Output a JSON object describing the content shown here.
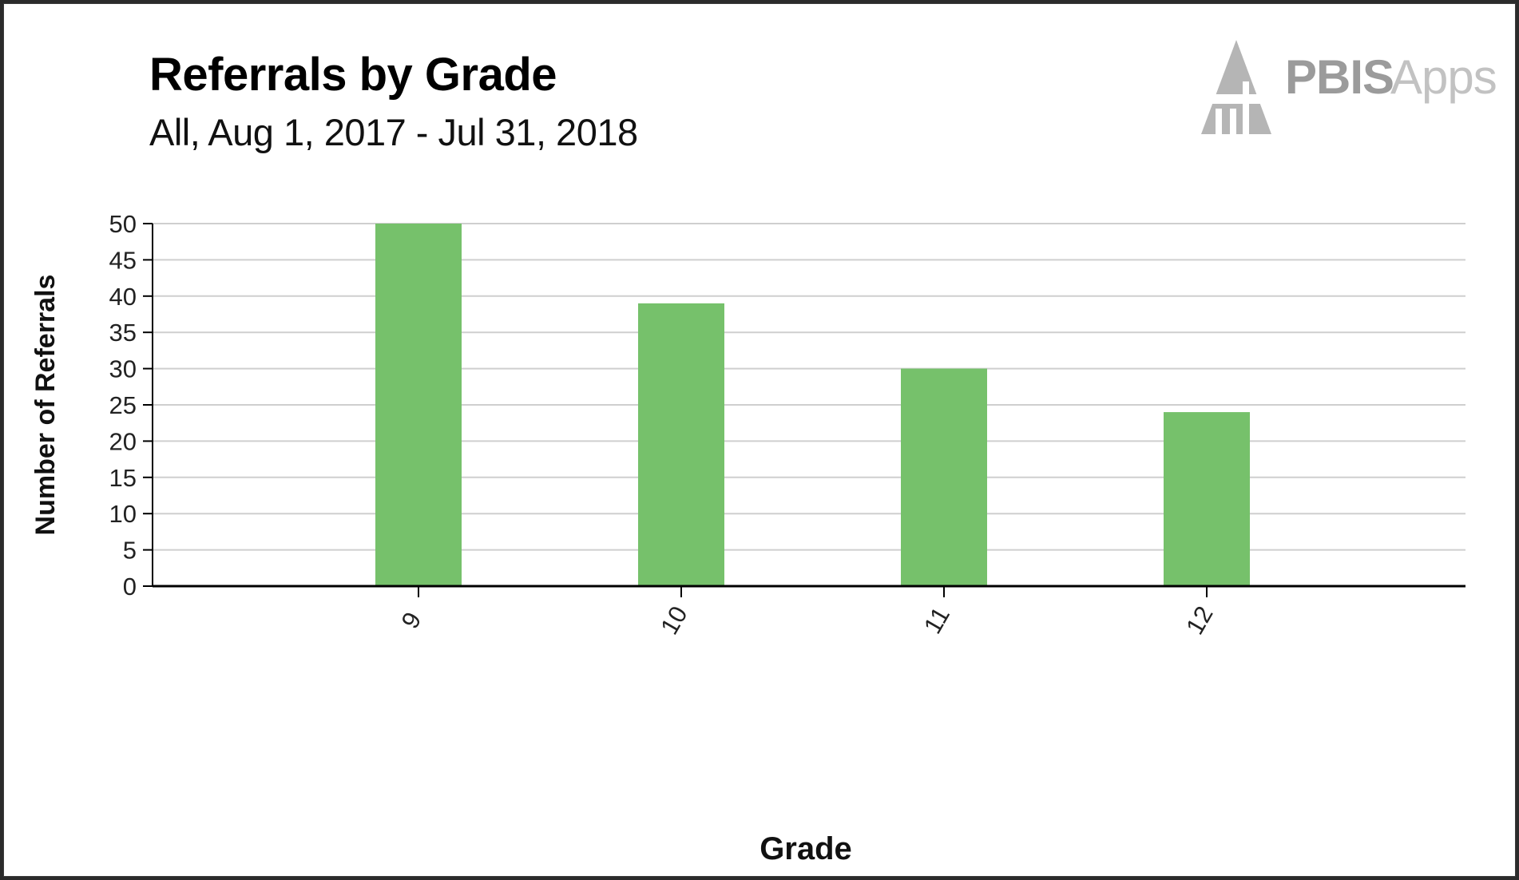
{
  "colors": {
    "bar": "#76c16b",
    "grid": "#cfcfcf",
    "axis": "#000000",
    "logo": "#9b9b9b"
  },
  "logo": {
    "text_strong": "PBIS",
    "text_light": "Apps",
    "icon": "pbis-house-icon"
  },
  "chart_data": {
    "type": "bar",
    "title": "Referrals by Grade",
    "subtitle": "All, Aug 1, 2017 - Jul 31, 2018",
    "xlabel": "Grade",
    "ylabel": "Number of Referrals",
    "categories": [
      "9",
      "10",
      "11",
      "12"
    ],
    "values": [
      50,
      39,
      30,
      24
    ],
    "ylim": [
      0,
      50
    ],
    "yticks": [
      0,
      5,
      10,
      15,
      20,
      25,
      30,
      35,
      40,
      45,
      50
    ],
    "grid": true,
    "legend": "none"
  }
}
